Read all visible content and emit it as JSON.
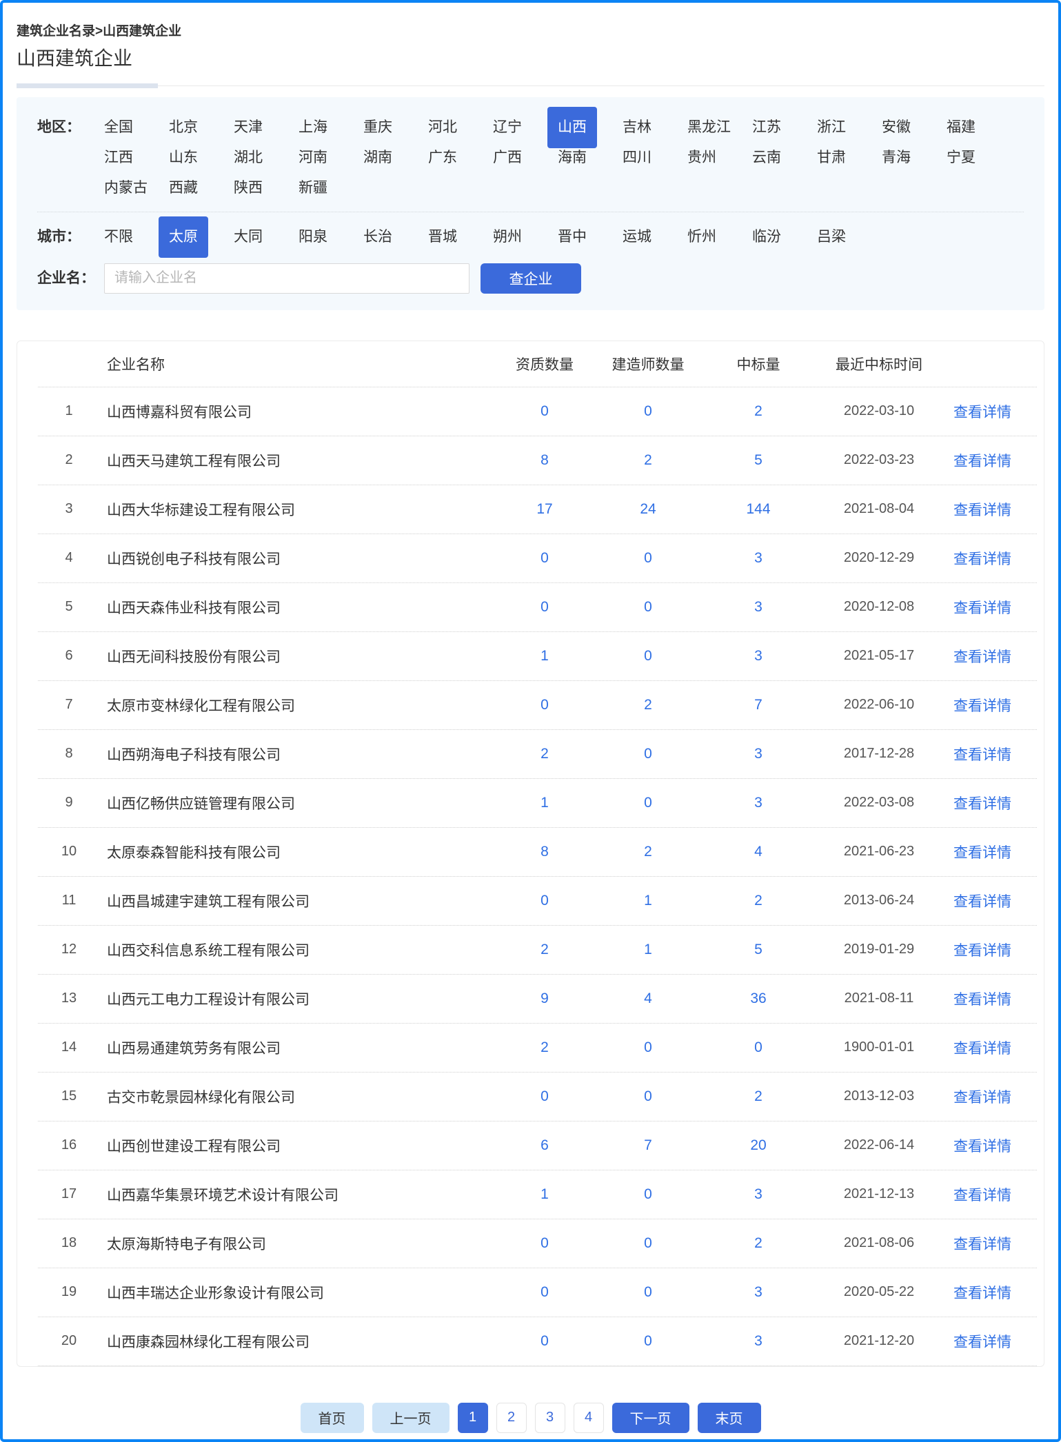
{
  "page": {
    "breadcrumb": "建筑企业名录>山西建筑企业",
    "title": "山西建筑企业"
  },
  "filters": {
    "region": {
      "label": "地区：",
      "selected": "山西",
      "items": [
        "全国",
        "北京",
        "天津",
        "上海",
        "重庆",
        "河北",
        "辽宁",
        "山西",
        "吉林",
        "黑龙江",
        "江苏",
        "浙江",
        "安徽",
        "福建",
        "江西",
        "山东",
        "湖北",
        "河南",
        "湖南",
        "广东",
        "广西",
        "海南",
        "四川",
        "贵州",
        "云南",
        "甘肃",
        "青海",
        "宁夏",
        "内蒙古",
        "西藏",
        "陕西",
        "新疆"
      ]
    },
    "city": {
      "label": "城市：",
      "selected": "太原",
      "items": [
        "不限",
        "太原",
        "大同",
        "阳泉",
        "长治",
        "晋城",
        "朔州",
        "晋中",
        "运城",
        "忻州",
        "临汾",
        "吕梁"
      ]
    },
    "company": {
      "label": "企业名：",
      "placeholder": "请输入企业名",
      "value": "",
      "search_button": "查企业"
    }
  },
  "table": {
    "headers": {
      "name": "企业名称",
      "qualifications": "资质数量",
      "builders": "建造师数量",
      "bids": "中标量",
      "last_bid_date": "最近中标时间"
    },
    "detail_label": "查看详情",
    "rows": [
      {
        "index": 1,
        "name": "山西博嘉科贸有限公司",
        "qualifications": 0,
        "builders": 0,
        "bids": 2,
        "last_bid_date": "2022-03-10"
      },
      {
        "index": 2,
        "name": "山西天马建筑工程有限公司",
        "qualifications": 8,
        "builders": 2,
        "bids": 5,
        "last_bid_date": "2022-03-23"
      },
      {
        "index": 3,
        "name": "山西大华标建设工程有限公司",
        "qualifications": 17,
        "builders": 24,
        "bids": 144,
        "last_bid_date": "2021-08-04"
      },
      {
        "index": 4,
        "name": "山西锐创电子科技有限公司",
        "qualifications": 0,
        "builders": 0,
        "bids": 3,
        "last_bid_date": "2020-12-29"
      },
      {
        "index": 5,
        "name": "山西天森伟业科技有限公司",
        "qualifications": 0,
        "builders": 0,
        "bids": 3,
        "last_bid_date": "2020-12-08"
      },
      {
        "index": 6,
        "name": "山西无间科技股份有限公司",
        "qualifications": 1,
        "builders": 0,
        "bids": 3,
        "last_bid_date": "2021-05-17"
      },
      {
        "index": 7,
        "name": "太原市变林绿化工程有限公司",
        "qualifications": 0,
        "builders": 2,
        "bids": 7,
        "last_bid_date": "2022-06-10"
      },
      {
        "index": 8,
        "name": "山西朔海电子科技有限公司",
        "qualifications": 2,
        "builders": 0,
        "bids": 3,
        "last_bid_date": "2017-12-28"
      },
      {
        "index": 9,
        "name": "山西亿畅供应链管理有限公司",
        "qualifications": 1,
        "builders": 0,
        "bids": 3,
        "last_bid_date": "2022-03-08"
      },
      {
        "index": 10,
        "name": "太原泰森智能科技有限公司",
        "qualifications": 8,
        "builders": 2,
        "bids": 4,
        "last_bid_date": "2021-06-23"
      },
      {
        "index": 11,
        "name": "山西昌城建宇建筑工程有限公司",
        "qualifications": 0,
        "builders": 1,
        "bids": 2,
        "last_bid_date": "2013-06-24"
      },
      {
        "index": 12,
        "name": "山西交科信息系统工程有限公司",
        "qualifications": 2,
        "builders": 1,
        "bids": 5,
        "last_bid_date": "2019-01-29"
      },
      {
        "index": 13,
        "name": "山西元工电力工程设计有限公司",
        "qualifications": 9,
        "builders": 4,
        "bids": 36,
        "last_bid_date": "2021-08-11"
      },
      {
        "index": 14,
        "name": "山西易通建筑劳务有限公司",
        "qualifications": 2,
        "builders": 0,
        "bids": 0,
        "last_bid_date": "1900-01-01"
      },
      {
        "index": 15,
        "name": "古交市乾景园林绿化有限公司",
        "qualifications": 0,
        "builders": 0,
        "bids": 2,
        "last_bid_date": "2013-12-03"
      },
      {
        "index": 16,
        "name": "山西创世建设工程有限公司",
        "qualifications": 6,
        "builders": 7,
        "bids": 20,
        "last_bid_date": "2022-06-14"
      },
      {
        "index": 17,
        "name": "山西嘉华集景环境艺术设计有限公司",
        "qualifications": 1,
        "builders": 0,
        "bids": 3,
        "last_bid_date": "2021-12-13"
      },
      {
        "index": 18,
        "name": "太原海斯特电子有限公司",
        "qualifications": 0,
        "builders": 0,
        "bids": 2,
        "last_bid_date": "2021-08-06"
      },
      {
        "index": 19,
        "name": "山西丰瑞达企业形象设计有限公司",
        "qualifications": 0,
        "builders": 0,
        "bids": 3,
        "last_bid_date": "2020-05-22"
      },
      {
        "index": 20,
        "name": "山西康森园林绿化工程有限公司",
        "qualifications": 0,
        "builders": 0,
        "bids": 3,
        "last_bid_date": "2021-12-20"
      }
    ]
  },
  "pagination": {
    "items": [
      {
        "label": "首页",
        "style": "muted",
        "name": "page-first-button"
      },
      {
        "label": "上一页",
        "style": "muted",
        "name": "page-prev-button"
      },
      {
        "label": "1",
        "style": "active",
        "name": "page-1-button"
      },
      {
        "label": "2",
        "style": "page",
        "name": "page-2-button"
      },
      {
        "label": "3",
        "style": "page",
        "name": "page-3-button"
      },
      {
        "label": "4",
        "style": "page",
        "name": "page-4-button"
      },
      {
        "label": "下一页",
        "style": "primary",
        "name": "page-next-button"
      },
      {
        "label": "末页",
        "style": "primary",
        "name": "page-last-button"
      }
    ]
  },
  "colors": {
    "accent": "#3b6adb",
    "link": "#2f6fe4",
    "page_border": "#0b84f5",
    "panel_bg": "#f4f9fd",
    "muted_button_bg": "#cfe5f8"
  }
}
